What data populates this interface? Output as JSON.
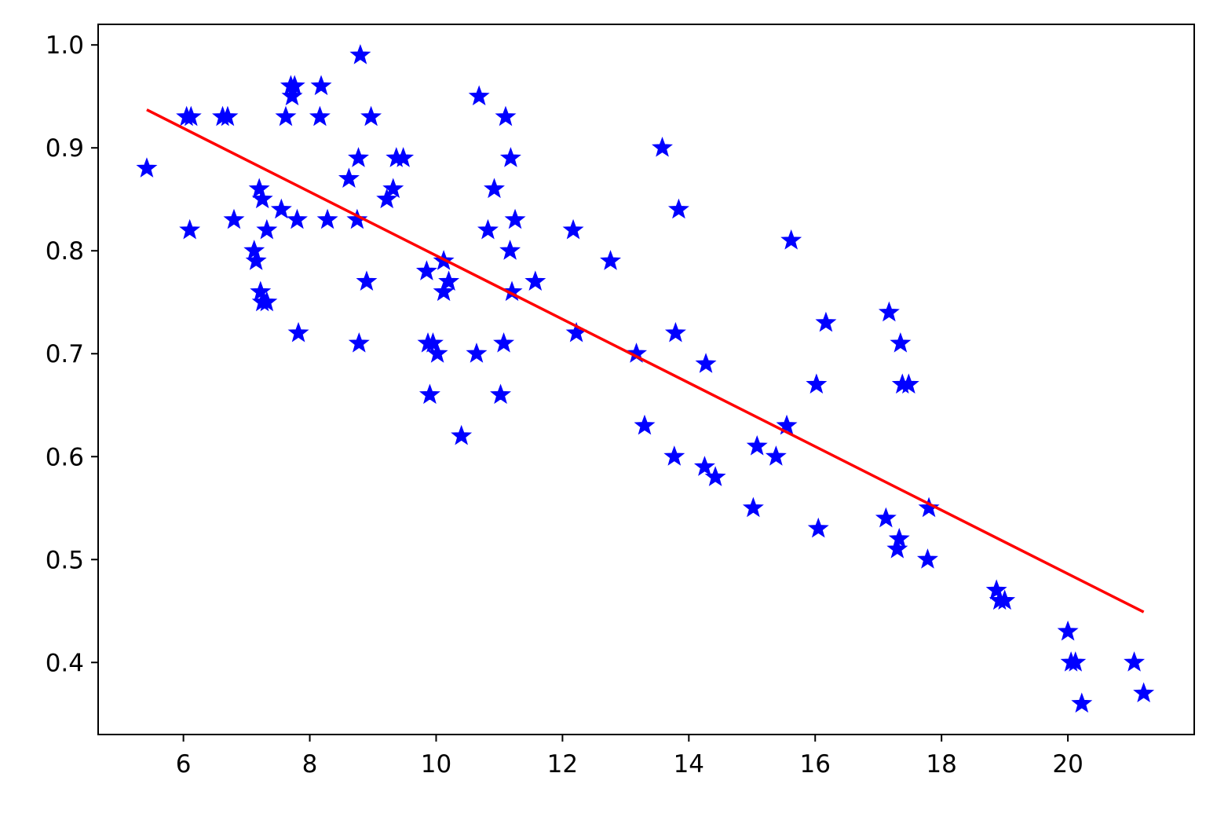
{
  "colors": {
    "marker": "#0000ff",
    "fit_line": "#ff0000",
    "axis": "#000000",
    "background": "#ffffff"
  },
  "chart_data": {
    "type": "scatter",
    "title": "",
    "xlabel": "",
    "ylabel": "",
    "xlim": [
      4.65,
      22.0
    ],
    "ylim": [
      0.33,
      1.02
    ],
    "grid": false,
    "legend": "none",
    "marker": "star",
    "x_ticks": [
      6,
      8,
      10,
      12,
      14,
      16,
      18,
      20
    ],
    "x_tick_labels": [
      "6",
      "8",
      "10",
      "12",
      "14",
      "16",
      "18",
      "20"
    ],
    "y_ticks": [
      0.4,
      0.5,
      0.6,
      0.7,
      0.8,
      0.9,
      1.0
    ],
    "y_tick_labels": [
      "0.4",
      "0.5",
      "0.6",
      "0.7",
      "0.8",
      "0.9",
      "1.0"
    ],
    "series": [
      {
        "type": "scatter",
        "points": [
          [
            5.42,
            0.88
          ],
          [
            6.05,
            0.93
          ],
          [
            6.12,
            0.93
          ],
          [
            6.1,
            0.82
          ],
          [
            6.62,
            0.93
          ],
          [
            6.7,
            0.93
          ],
          [
            6.8,
            0.83
          ],
          [
            7.12,
            0.8
          ],
          [
            7.15,
            0.79
          ],
          [
            7.2,
            0.86
          ],
          [
            7.22,
            0.76
          ],
          [
            7.25,
            0.85
          ],
          [
            7.25,
            0.75
          ],
          [
            7.32,
            0.75
          ],
          [
            7.32,
            0.82
          ],
          [
            7.55,
            0.84
          ],
          [
            7.62,
            0.93
          ],
          [
            7.7,
            0.96
          ],
          [
            7.72,
            0.95
          ],
          [
            7.76,
            0.96
          ],
          [
            7.8,
            0.83
          ],
          [
            7.82,
            0.72
          ],
          [
            8.16,
            0.93
          ],
          [
            8.18,
            0.96
          ],
          [
            8.28,
            0.83
          ],
          [
            8.62,
            0.87
          ],
          [
            8.75,
            0.83
          ],
          [
            8.77,
            0.89
          ],
          [
            8.78,
            0.71
          ],
          [
            8.8,
            0.99
          ],
          [
            8.9,
            0.77
          ],
          [
            8.97,
            0.93
          ],
          [
            9.22,
            0.85
          ],
          [
            9.32,
            0.86
          ],
          [
            9.37,
            0.89
          ],
          [
            9.48,
            0.89
          ],
          [
            9.85,
            0.78
          ],
          [
            9.87,
            0.71
          ],
          [
            9.9,
            0.66
          ],
          [
            9.95,
            0.71
          ],
          [
            10.02,
            0.7
          ],
          [
            10.12,
            0.79
          ],
          [
            10.12,
            0.76
          ],
          [
            10.2,
            0.77
          ],
          [
            10.4,
            0.62
          ],
          [
            10.64,
            0.7
          ],
          [
            10.68,
            0.95
          ],
          [
            10.82,
            0.82
          ],
          [
            10.92,
            0.86
          ],
          [
            11.02,
            0.66
          ],
          [
            11.07,
            0.71
          ],
          [
            11.1,
            0.93
          ],
          [
            11.17,
            0.8
          ],
          [
            11.18,
            0.89
          ],
          [
            11.2,
            0.76
          ],
          [
            11.25,
            0.83
          ],
          [
            11.57,
            0.77
          ],
          [
            12.17,
            0.82
          ],
          [
            12.22,
            0.72
          ],
          [
            12.76,
            0.79
          ],
          [
            13.17,
            0.7
          ],
          [
            13.3,
            0.63
          ],
          [
            13.58,
            0.9
          ],
          [
            13.77,
            0.6
          ],
          [
            13.79,
            0.72
          ],
          [
            13.84,
            0.84
          ],
          [
            14.25,
            0.59
          ],
          [
            14.27,
            0.69
          ],
          [
            14.42,
            0.58
          ],
          [
            15.02,
            0.55
          ],
          [
            15.08,
            0.61
          ],
          [
            15.38,
            0.6
          ],
          [
            15.55,
            0.63
          ],
          [
            15.62,
            0.81
          ],
          [
            16.02,
            0.67
          ],
          [
            16.05,
            0.53
          ],
          [
            16.17,
            0.73
          ],
          [
            17.12,
            0.54
          ],
          [
            17.17,
            0.74
          ],
          [
            17.3,
            0.51
          ],
          [
            17.33,
            0.52
          ],
          [
            17.35,
            0.71
          ],
          [
            17.38,
            0.67
          ],
          [
            17.48,
            0.67
          ],
          [
            17.78,
            0.5
          ],
          [
            17.8,
            0.55
          ],
          [
            18.87,
            0.47
          ],
          [
            18.92,
            0.46
          ],
          [
            19.0,
            0.46
          ],
          [
            20.0,
            0.43
          ],
          [
            20.05,
            0.4
          ],
          [
            20.12,
            0.4
          ],
          [
            20.22,
            0.36
          ],
          [
            21.05,
            0.4
          ],
          [
            21.2,
            0.37
          ]
        ]
      },
      {
        "type": "line",
        "x": [
          5.42,
          21.2
        ],
        "y": [
          0.937,
          0.449
        ]
      }
    ]
  }
}
